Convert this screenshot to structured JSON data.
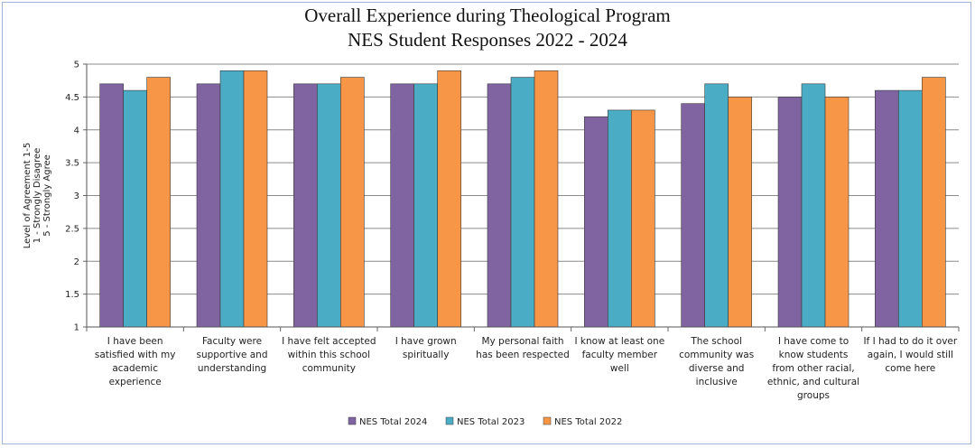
{
  "chart_data": {
    "type": "bar",
    "title_lines": [
      "Overall Experience during Theological Program",
      "NES Student Responses 2022 - 2024"
    ],
    "ylabel_lines": [
      "Level of Agreement 1-5",
      "1 - Strongly Disagree",
      "5 - Strongly Agree"
    ],
    "ylim": [
      1,
      5
    ],
    "yticks": [
      "1",
      "1.5",
      "2",
      "2.5",
      "3",
      "3.5",
      "4",
      "4.5",
      "5"
    ],
    "ytick_values": [
      1,
      1.5,
      2,
      2.5,
      3,
      3.5,
      4,
      4.5,
      5
    ],
    "grid": true,
    "legend_position": "bottom",
    "categories": [
      [
        "I have been",
        "satisfied with my",
        "academic",
        "experience"
      ],
      [
        "Faculty were",
        "supportive and",
        "understanding"
      ],
      [
        "I have felt accepted",
        "within this school",
        "community"
      ],
      [
        "I have grown",
        "spiritually"
      ],
      [
        "My personal faith",
        "has been respected"
      ],
      [
        "I know at least one",
        "faculty member",
        "well"
      ],
      [
        "The school",
        "community was",
        "diverse and",
        "inclusive"
      ],
      [
        "I have come to",
        "know students",
        "from other racial,",
        "ethnic, and cultural",
        "groups"
      ],
      [
        "If I had to do it over",
        "again, I would still",
        "come here"
      ]
    ],
    "series": [
      {
        "name": "NES Total 2024",
        "color": "#8064a2",
        "values": [
          4.7,
          4.7,
          4.7,
          4.7,
          4.7,
          4.2,
          4.4,
          4.5,
          4.6
        ]
      },
      {
        "name": "NES Total 2023",
        "color": "#4bacc6",
        "values": [
          4.6,
          4.9,
          4.7,
          4.7,
          4.8,
          4.3,
          4.7,
          4.7,
          4.6
        ]
      },
      {
        "name": "NES Total 2022",
        "color": "#f79646",
        "values": [
          4.8,
          4.9,
          4.8,
          4.9,
          4.9,
          4.3,
          4.5,
          4.5,
          4.8
        ]
      }
    ]
  }
}
